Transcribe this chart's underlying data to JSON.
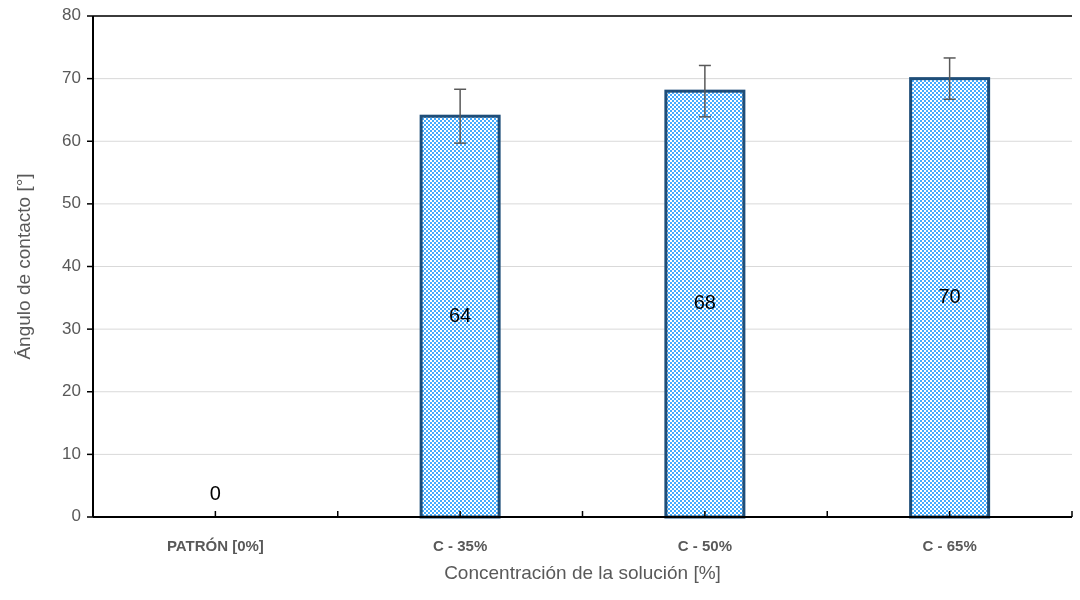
{
  "chart_data": {
    "type": "bar",
    "xlabel": "Concentración de la solución [%]",
    "ylabel": "Ángulo de contacto [°]",
    "categories": [
      "PATRÓN [0%]",
      "C - 35%",
      "C - 50%",
      "C - 65%"
    ],
    "values": [
      0,
      64,
      68,
      70
    ],
    "errors": [
      null,
      4.3,
      4.1,
      3.3
    ],
    "color": "#1f4e79",
    "data_labels": true,
    "ylim": [
      0,
      80
    ],
    "yticks": [
      0,
      10,
      20,
      30,
      40,
      50,
      60,
      70,
      80
    ],
    "grid": "y"
  }
}
